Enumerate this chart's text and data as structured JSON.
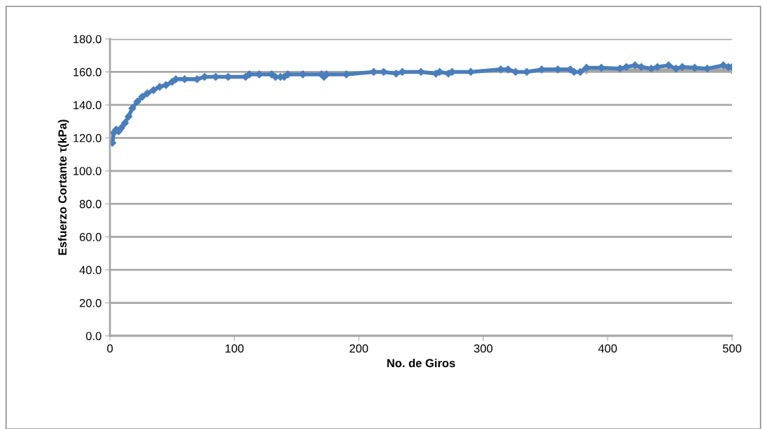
{
  "chart_data": {
    "type": "line",
    "xlabel": "No. de Giros",
    "ylabel": "Esfuerzo Cortante τ(kPa)",
    "xlim": [
      0,
      500
    ],
    "xticks": [
      0,
      100,
      200,
      300,
      400,
      500
    ],
    "ylim": [
      0,
      180
    ],
    "yticks": [
      {
        "value": 0,
        "label": "0.0"
      },
      {
        "value": 20,
        "label": "20.0"
      },
      {
        "value": 40,
        "label": "40.0"
      },
      {
        "value": 60,
        "label": "60.0"
      },
      {
        "value": 80,
        "label": "80.0"
      },
      {
        "value": 100,
        "label": "100.0"
      },
      {
        "value": 120,
        "label": "120.0"
      },
      {
        "value": 140,
        "label": "140.0"
      },
      {
        "value": 160,
        "label": "160.0"
      },
      {
        "value": 180,
        "label": "180.0"
      }
    ],
    "grid": "y",
    "marker": "diamond",
    "line_style": "solid",
    "series": [
      {
        "color": "#a6a6a6",
        "x": [
          383,
          500
        ],
        "values": [
          161,
          161
        ]
      },
      {
        "color": "#4a7ebb",
        "x": [
          2,
          3,
          5,
          7,
          9,
          12,
          15,
          18,
          22,
          26,
          30,
          35,
          40,
          45,
          50,
          53,
          60,
          70,
          76,
          85,
          95,
          109,
          112,
          120,
          130,
          133,
          137,
          140,
          143,
          155,
          170,
          172,
          174,
          190,
          212,
          220,
          230,
          235,
          250,
          262,
          265,
          272,
          275,
          290,
          314,
          320,
          326,
          335,
          347,
          360,
          370,
          373,
          378,
          383,
          395,
          410,
          415,
          422,
          427,
          435,
          440,
          449,
          455,
          460,
          470,
          480,
          493,
          497,
          500
        ],
        "values": [
          117,
          123,
          125,
          124,
          126,
          129,
          133,
          138,
          142,
          145,
          147,
          149,
          151,
          152,
          154,
          155.6,
          155.6,
          155.6,
          157,
          157,
          157,
          157,
          158.5,
          158.5,
          158.5,
          157,
          157,
          157,
          158.5,
          158.5,
          158.5,
          157,
          158.5,
          158.5,
          160,
          160,
          159,
          160,
          160,
          159,
          160,
          159,
          160,
          160,
          161.5,
          161.5,
          160,
          160,
          161.5,
          161.5,
          161.5,
          160,
          160,
          162.5,
          162.5,
          162,
          163,
          164,
          163,
          162,
          163,
          164,
          162,
          163,
          162.5,
          162,
          164,
          163,
          163
        ]
      }
    ]
  }
}
